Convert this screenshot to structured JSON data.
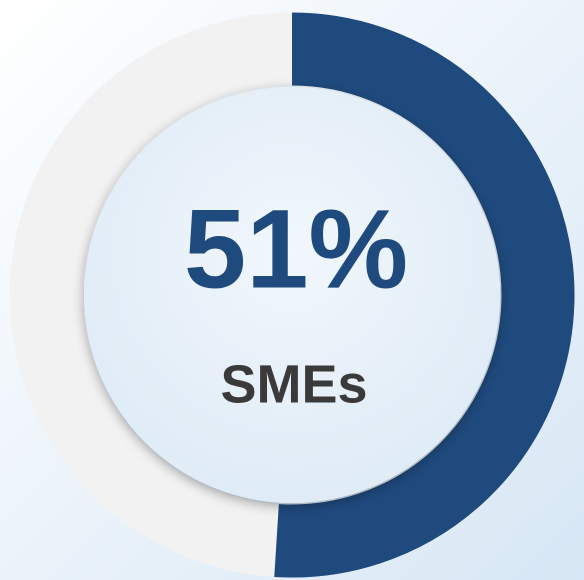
{
  "chart_data": {
    "type": "donut",
    "value": 51,
    "value_label": "51%",
    "label": "SMEs",
    "range": [
      0,
      100
    ],
    "color": "#1f4a7e",
    "track_color": "#f2f2f2"
  }
}
